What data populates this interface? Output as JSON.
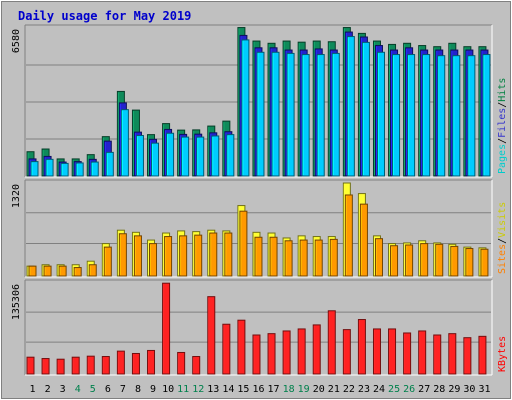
{
  "chart_data": {
    "type": "bar",
    "title": "Daily usage for May 2019",
    "categories": [
      "1",
      "2",
      "3",
      "4",
      "5",
      "6",
      "7",
      "8",
      "9",
      "10",
      "11",
      "12",
      "13",
      "14",
      "15",
      "16",
      "17",
      "18",
      "19",
      "20",
      "21",
      "22",
      "23",
      "24",
      "25",
      "26",
      "27",
      "28",
      "29",
      "30",
      "31"
    ],
    "weekend_days": [
      "4",
      "5",
      "11",
      "12",
      "18",
      "19",
      "25",
      "26"
    ],
    "panels": [
      {
        "name": "top",
        "max_label": "6580",
        "ymax": 6580,
        "legend": [
          {
            "text": "Pages",
            "color": "#00cccc"
          },
          {
            "text": "/",
            "color": "#000000"
          },
          {
            "text": "Files",
            "color": "#3333cc"
          },
          {
            "text": "/",
            "color": "#000000"
          },
          {
            "text": "Hits",
            "color": "#008040"
          }
        ],
        "series": [
          {
            "name": "Hits",
            "color": "#0f8a5a",
            "values": [
              1080,
              1200,
              760,
              760,
              950,
              1750,
              3760,
              2930,
              1840,
              2330,
              2040,
              2050,
              2220,
              2440,
              6600,
              6000,
              5900,
              6000,
              5950,
              6000,
              5970,
              6600,
              6340,
              6000,
              5850,
              5900,
              5800,
              5750,
              5900,
              5750,
              5750
            ]
          },
          {
            "name": "Files",
            "color": "#2222cc",
            "values": [
              760,
              870,
              620,
              640,
              740,
              1550,
              3250,
              1950,
              1630,
              2070,
              1850,
              1860,
              1920,
              1970,
              6250,
              5700,
              5700,
              5600,
              5600,
              5650,
              5600,
              6400,
              6180,
              5800,
              5600,
              5700,
              5600,
              5600,
              5600,
              5600,
              5600
            ]
          },
          {
            "name": "Pages",
            "color": "#00ccff",
            "values": [
              640,
              740,
              560,
              580,
              620,
              1050,
              2950,
              1800,
              1460,
              1900,
              1730,
              1730,
              1780,
              1840,
              6050,
              5500,
              5500,
              5450,
              5400,
              5400,
              5450,
              6200,
              5940,
              5500,
              5400,
              5400,
              5400,
              5350,
              5350,
              5350,
              5400
            ]
          }
        ]
      },
      {
        "name": "middle",
        "max_label": "1320",
        "ymax": 1320,
        "legend": [
          {
            "text": "Sites",
            "color": "#ff8000"
          },
          {
            "text": "/",
            "color": "#000000"
          },
          {
            "text": "Visits",
            "color": "#cccc00"
          }
        ],
        "series": [
          {
            "name": "Visits",
            "color": "#ffff33",
            "values": [
              140,
              160,
              160,
              160,
              210,
              460,
              650,
              620,
              510,
              610,
              640,
              630,
              650,
              640,
              1000,
              620,
              610,
              540,
              570,
              560,
              560,
              1320,
              1170,
              570,
              460,
              470,
              500,
              470,
              450,
              410,
              400
            ]
          },
          {
            "name": "Sites",
            "color": "#ff9900",
            "values": [
              140,
              140,
              140,
              120,
              160,
              410,
              600,
              570,
              460,
              560,
              570,
              580,
              610,
              610,
              920,
              550,
              550,
              500,
              510,
              510,
              520,
              1150,
              1020,
              530,
              430,
              440,
              460,
              450,
              420,
              390,
              380
            ]
          }
        ]
      },
      {
        "name": "bottom",
        "max_label": "135306",
        "ymax": 135306,
        "legend": [
          {
            "text": "KBytes",
            "color": "#ff0000"
          }
        ],
        "series": [
          {
            "name": "KBytes",
            "color": "#ff2222",
            "values": [
              25000,
              23000,
              22000,
              25000,
              26500,
              26000,
              34000,
              30500,
              35000,
              135000,
              32000,
              26000,
              115000,
              74000,
              80000,
              58000,
              60000,
              64000,
              67000,
              73000,
              94000,
              66000,
              81000,
              67000,
              67000,
              61000,
              64000,
              58000,
              60000,
              54000,
              56000
            ]
          }
        ]
      }
    ],
    "colors": {
      "background": "#c0c0c0",
      "plot_background": "#c0c0c0",
      "title_color": "#0000cc",
      "weekday_label": "#000000",
      "weekend_label": "#00804c"
    }
  }
}
